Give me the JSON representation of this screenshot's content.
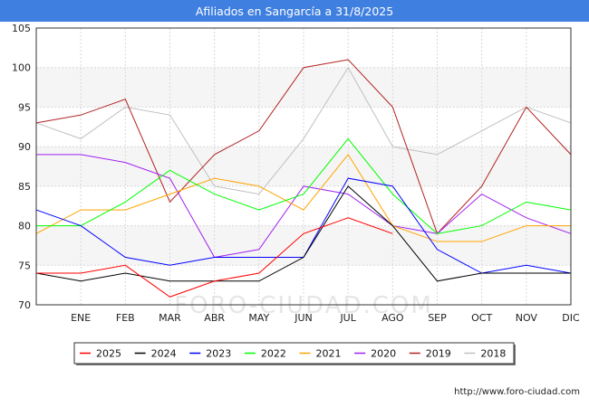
{
  "chart_data": {
    "type": "line",
    "title": "Afiliados en Sangarcía a 31/8/2025",
    "categories": [
      "",
      "ENE",
      "FEB",
      "MAR",
      "ABR",
      "MAY",
      "JUN",
      "JUL",
      "AGO",
      "SEP",
      "OCT",
      "NOV",
      "DIC"
    ],
    "ylim": [
      70,
      105
    ],
    "yticks": [
      70,
      75,
      80,
      85,
      90,
      95,
      100,
      105
    ],
    "grid": true,
    "legend_position": "bottom",
    "series": [
      {
        "name": "2025",
        "color": "#ff0000",
        "values": [
          74,
          74,
          75,
          71,
          73,
          74,
          79,
          81,
          79,
          null,
          null,
          null,
          null
        ]
      },
      {
        "name": "2024",
        "color": "#000000",
        "values": [
          74,
          73,
          74,
          73,
          73,
          73,
          76,
          85,
          80,
          73,
          74,
          74,
          74
        ]
      },
      {
        "name": "2023",
        "color": "#0000ff",
        "values": [
          82,
          80,
          76,
          75,
          76,
          76,
          76,
          86,
          85,
          77,
          74,
          75,
          74
        ]
      },
      {
        "name": "2022",
        "color": "#00ff00",
        "values": [
          80,
          80,
          83,
          87,
          84,
          82,
          84,
          91,
          84,
          79,
          80,
          83,
          82
        ]
      },
      {
        "name": "2021",
        "color": "#ffa500",
        "values": [
          79,
          82,
          82,
          84,
          86,
          85,
          82,
          89,
          80,
          78,
          78,
          80,
          80
        ]
      },
      {
        "name": "2020",
        "color": "#a020f0",
        "values": [
          89,
          89,
          88,
          86,
          76,
          77,
          85,
          84,
          80,
          79,
          84,
          81,
          79
        ]
      },
      {
        "name": "2019",
        "color": "#b22222",
        "values": [
          93,
          94,
          96,
          83,
          89,
          92,
          100,
          101,
          95,
          79,
          85,
          95,
          89
        ]
      },
      {
        "name": "2018",
        "color": "#c0c0c0",
        "values": [
          93,
          91,
          95,
          94,
          85,
          84,
          91,
          100,
          90,
          89,
          92,
          95,
          93
        ]
      }
    ]
  },
  "watermark": "FORO-CIUDAD.COM",
  "footer": "http://www.foro-ciudad.com"
}
